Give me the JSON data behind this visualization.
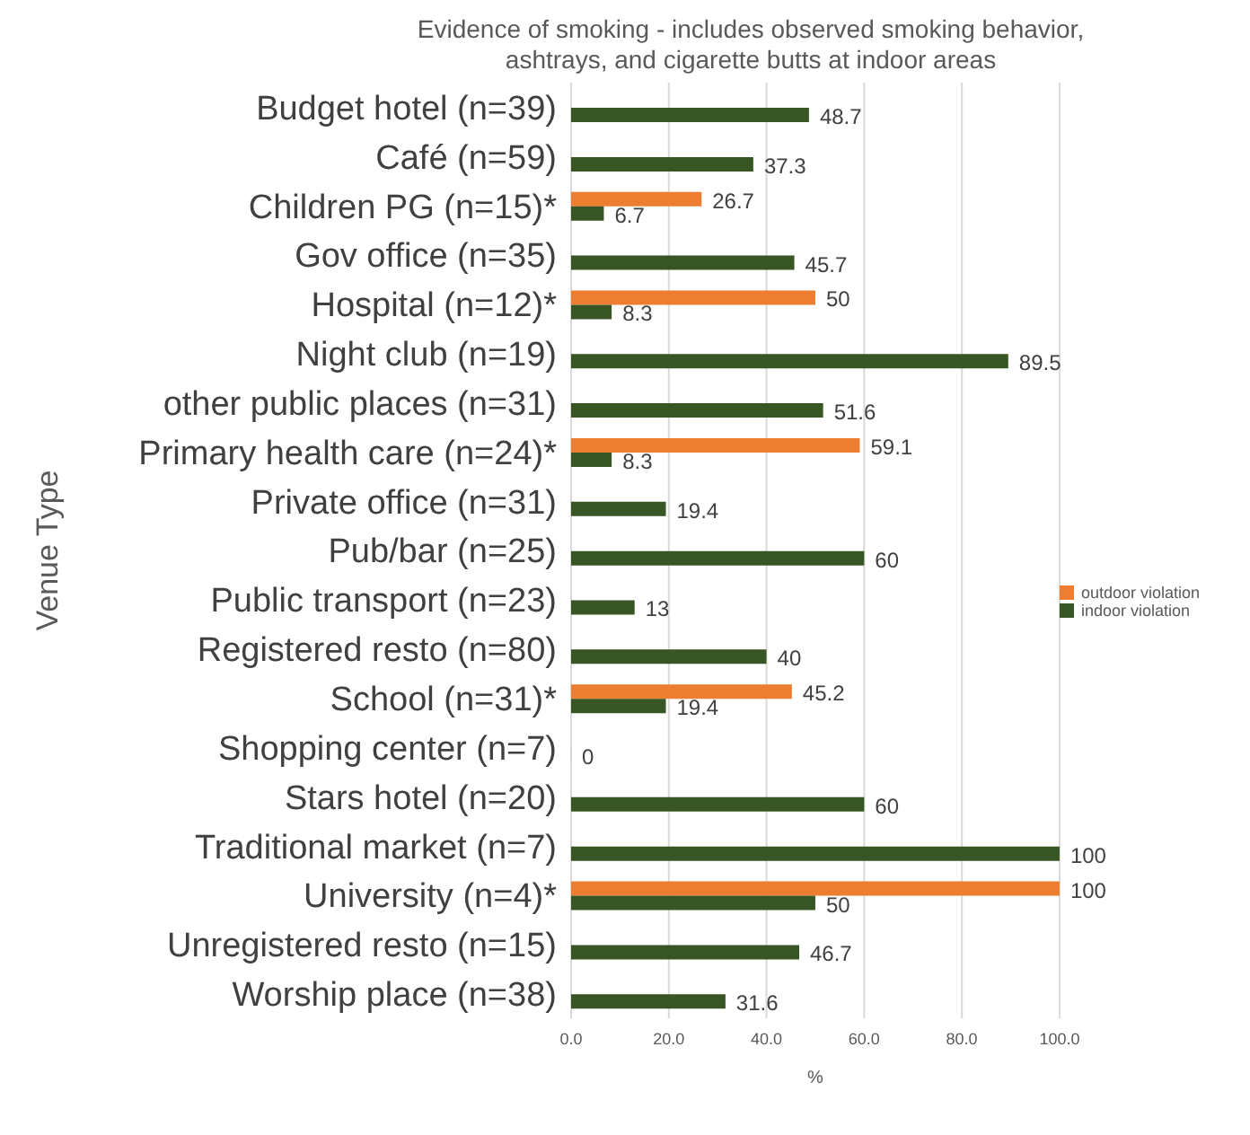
{
  "chart_data": {
    "type": "bar",
    "orientation": "horizontal",
    "title": "Evidence of smoking - includes observed smoking behavior, ashtrays, and cigarette butts at indoor areas",
    "xlabel": "%",
    "ylabel": "Venue Type",
    "categories": [
      "Budget hotel (n=39)",
      "Café (n=59)",
      "Children PG (n=15)*",
      "Gov office (n=35)",
      "Hospital (n=12)*",
      "Night club (n=19)",
      "other public places (n=31)",
      "Primary health care (n=24)*",
      "Private office (n=31)",
      "Pub/bar (n=25)",
      "Public transport (n=23)",
      "Registered resto (n=80)",
      "School (n=31)*",
      "Shopping center (n=7)",
      "Stars hotel (n=20)",
      "Traditional market (n=7)",
      "University (n=4)*",
      "Unregistered resto (n=15)",
      "Worship place (n=38)"
    ],
    "series": [
      {
        "name": "outdoor violation",
        "color": "#ed7d31",
        "values": [
          null,
          null,
          26.7,
          null,
          50,
          null,
          null,
          59.1,
          null,
          null,
          null,
          null,
          45.2,
          null,
          null,
          null,
          100,
          null,
          null
        ]
      },
      {
        "name": "indoor violation",
        "color": "#375623",
        "values": [
          48.7,
          37.3,
          6.7,
          45.7,
          8.3,
          89.5,
          51.6,
          8.3,
          19.4,
          60,
          13,
          40,
          19.4,
          0,
          60,
          100,
          50,
          46.7,
          31.6
        ]
      }
    ],
    "xlim": [
      0,
      100
    ],
    "xticks": [
      {
        "value": 0,
        "label": "0.0"
      },
      {
        "value": 20,
        "label": "20.0"
      },
      {
        "value": 40,
        "label": "40.0"
      },
      {
        "value": 60,
        "label": "60.0"
      },
      {
        "value": 80,
        "label": "80.0"
      },
      {
        "value": 100,
        "label": "100.0"
      }
    ],
    "grid": "x",
    "legend": "right",
    "data_labels": true
  }
}
